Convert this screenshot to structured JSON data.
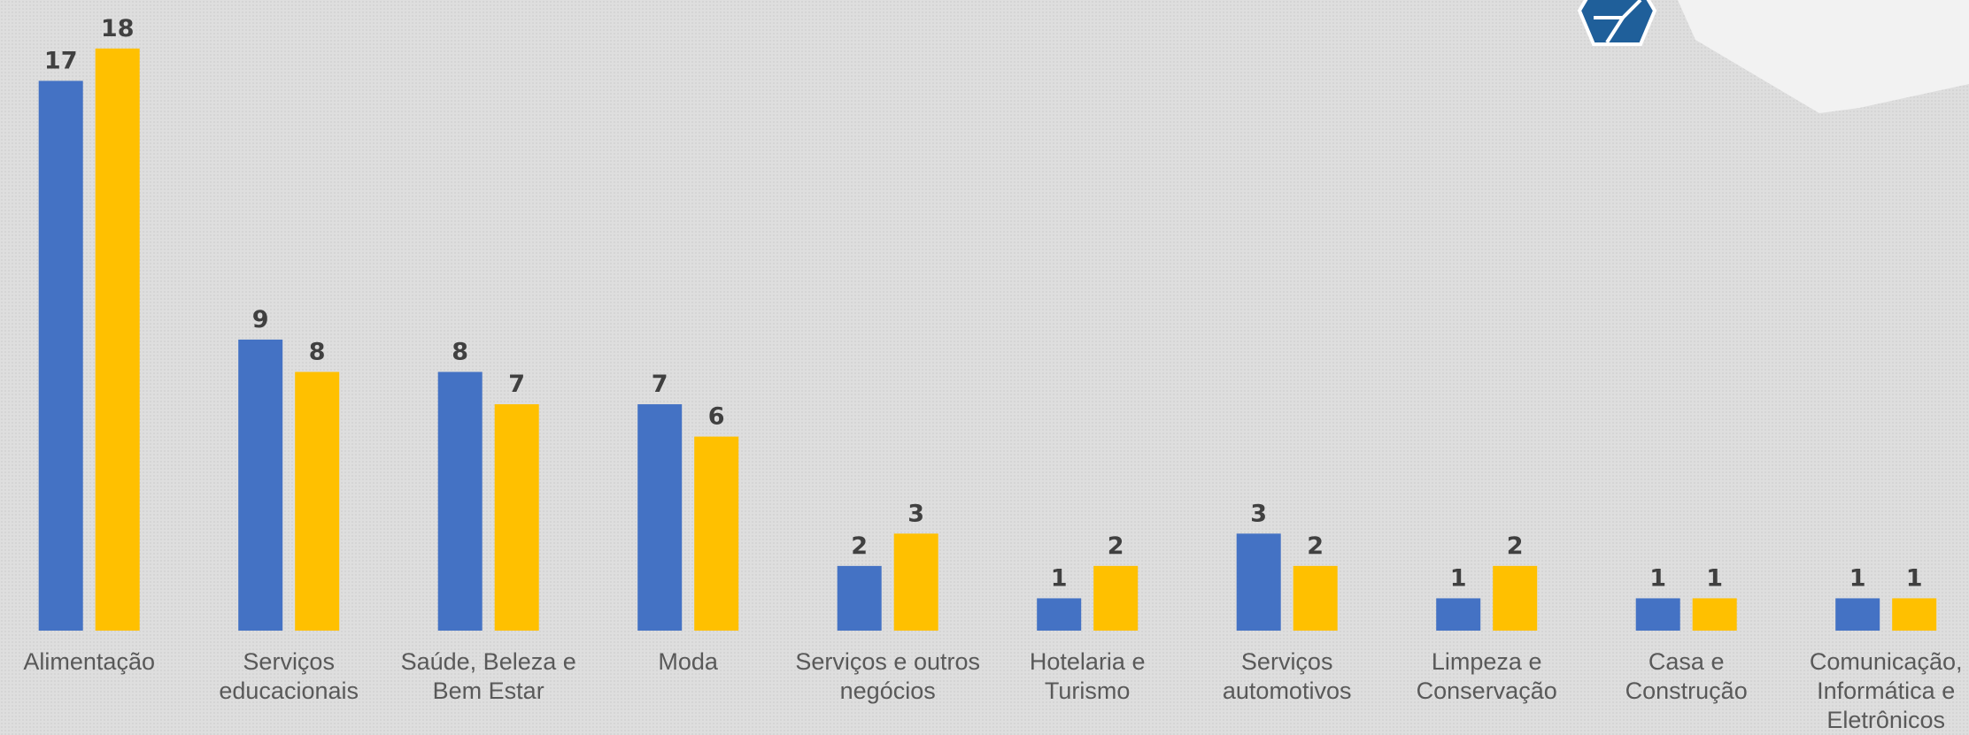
{
  "chart_data": {
    "type": "bar",
    "categories": [
      "Alimentação",
      "Serviços educacionais",
      "Saúde, Beleza e Bem Estar",
      "Moda",
      "Serviços e outros negócios",
      "Hotelaria e Turismo",
      "Serviços automotivos",
      "Limpeza e Conservação",
      "Casa e Construção",
      "Comunicação, Informática e Eletrônicos"
    ],
    "series": [
      {
        "color": "#4472c4",
        "values": [
          17,
          9,
          8,
          7,
          2,
          1,
          3,
          1,
          1,
          1
        ]
      },
      {
        "color": "#ffc000",
        "values": [
          18,
          8,
          7,
          6,
          3,
          2,
          2,
          2,
          1,
          1
        ]
      }
    ],
    "ylim": [
      0,
      19.5
    ]
  }
}
